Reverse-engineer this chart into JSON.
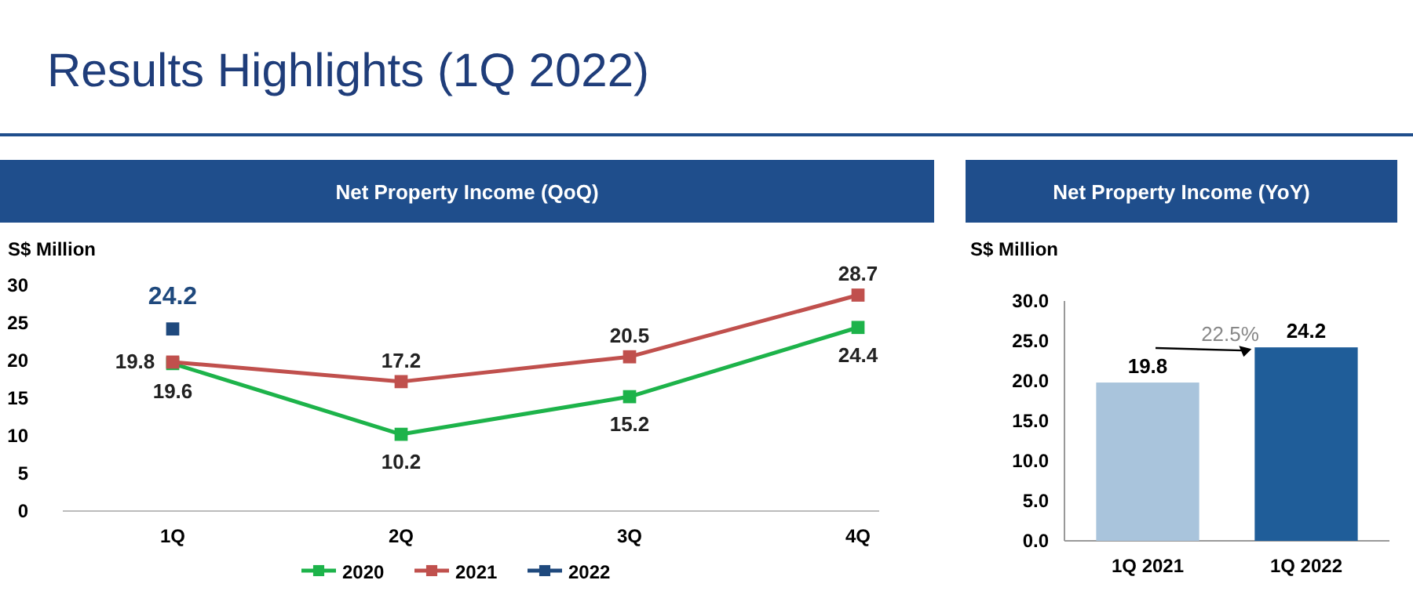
{
  "chart_data": [
    {
      "type": "other",
      "title": "Results Highlights (1Q 2022)"
    },
    {
      "type": "line",
      "title": "Net Property Income (QoQ)",
      "ylabel": "S$ Million",
      "categories": [
        "1Q",
        "2Q",
        "3Q",
        "4Q"
      ],
      "series": [
        {
          "name": "2020",
          "color": "#1db34a",
          "values": [
            19.6,
            10.2,
            15.2,
            24.4
          ]
        },
        {
          "name": "2021",
          "color": "#c0504d",
          "values": [
            19.8,
            17.2,
            20.5,
            28.7
          ]
        },
        {
          "name": "2022",
          "color": "#1f497d",
          "values": [
            24.2,
            null,
            null,
            null
          ]
        }
      ],
      "ylim": [
        0,
        30
      ],
      "yticks": [
        0,
        5,
        10,
        15,
        20,
        25,
        30
      ],
      "grid": false,
      "legend": "bottom",
      "marker": "square",
      "data_labels": true
    },
    {
      "type": "bar",
      "title": "Net Property Income (YoY)",
      "ylabel": "S$ Million",
      "categories": [
        "1Q 2021",
        "1Q 2022"
      ],
      "values": [
        19.8,
        24.2
      ],
      "colors": [
        "#a9c4dc",
        "#1f5d99"
      ],
      "ylim": [
        0,
        30
      ],
      "yticks": [
        {
          "value": 0,
          "label": "0.0"
        },
        {
          "value": 5,
          "label": "5.0"
        },
        {
          "value": 10,
          "label": "10.0"
        },
        {
          "value": 15,
          "label": "15.0"
        },
        {
          "value": 20,
          "label": "20.0"
        },
        {
          "value": 25,
          "label": "25.0"
        },
        {
          "value": 30,
          "label": "30.0"
        }
      ],
      "data_labels": true,
      "annotations": [
        "22.5%"
      ]
    }
  ]
}
